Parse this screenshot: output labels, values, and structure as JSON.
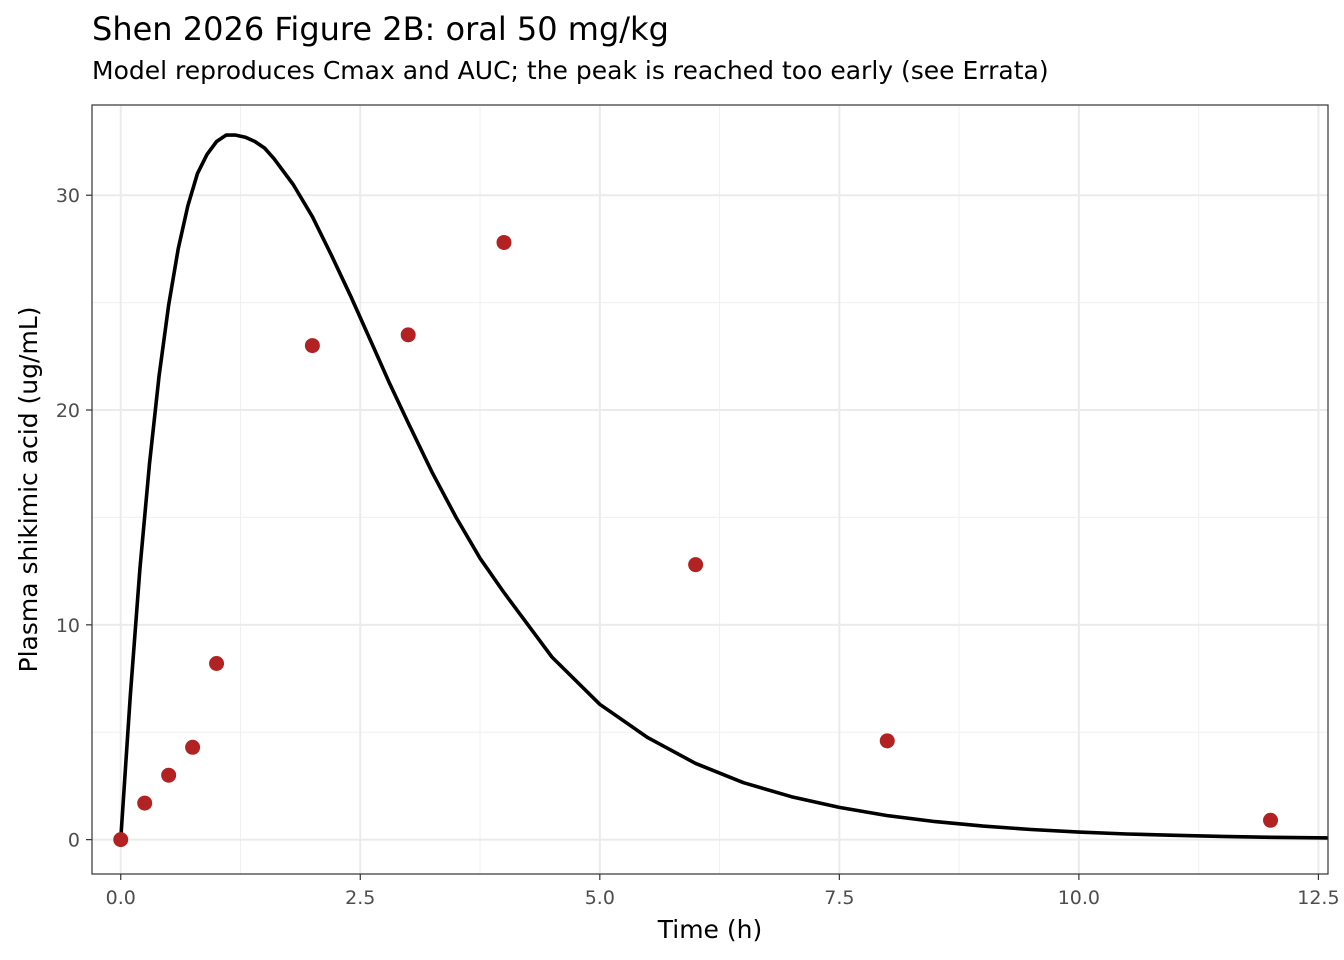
{
  "chart_data": {
    "type": "line",
    "title": "Shen 2026 Figure 2B: oral 50 mg/kg",
    "subtitle": "Model reproduces Cmax and AUC; the peak is reached too early (see Errata)",
    "xlabel": "Time (h)",
    "ylabel": "Plasma shikimic acid (ug/mL)",
    "xlim": [
      -0.3,
      12.6
    ],
    "ylim": [
      -1.6,
      34.2
    ],
    "x_ticks": [
      0,
      2.5,
      5,
      7.5,
      10,
      12.5
    ],
    "x_tick_labels": [
      "0.0",
      "2.5",
      "5.0",
      "7.5",
      "10.0",
      "12.5"
    ],
    "y_ticks": [
      0,
      10,
      20,
      30
    ],
    "y_tick_labels": [
      "0",
      "10",
      "20",
      "30"
    ],
    "grid": true,
    "legend": "none",
    "series": [
      {
        "kind": "line",
        "color": "#000000",
        "x": [
          0,
          0.1,
          0.2,
          0.3,
          0.4,
          0.5,
          0.6,
          0.7,
          0.8,
          0.9,
          1.0,
          1.1,
          1.2,
          1.3,
          1.4,
          1.5,
          1.6,
          1.8,
          2.0,
          2.2,
          2.4,
          2.6,
          2.8,
          3.0,
          3.25,
          3.5,
          3.75,
          4.0,
          4.5,
          5.0,
          5.5,
          6.0,
          6.5,
          7.0,
          7.5,
          8.0,
          8.5,
          9.0,
          9.5,
          10.0,
          10.5,
          11.0,
          11.5,
          12.0,
          12.6
        ],
        "y": [
          0,
          6.7,
          12.6,
          17.5,
          21.6,
          24.9,
          27.5,
          29.5,
          31.0,
          31.9,
          32.5,
          32.8,
          32.8,
          32.7,
          32.5,
          32.2,
          31.7,
          30.5,
          29.0,
          27.2,
          25.3,
          23.3,
          21.3,
          19.4,
          17.1,
          15.0,
          13.1,
          11.5,
          8.5,
          6.3,
          4.75,
          3.55,
          2.65,
          2.0,
          1.5,
          1.12,
          0.84,
          0.63,
          0.47,
          0.35,
          0.26,
          0.2,
          0.15,
          0.11,
          0.08
        ]
      },
      {
        "kind": "scatter",
        "color": "#b22222",
        "x": [
          0,
          0.25,
          0.5,
          0.75,
          1,
          2,
          3,
          4,
          6,
          8,
          12
        ],
        "y": [
          0,
          1.7,
          3.0,
          4.3,
          8.2,
          23.0,
          23.5,
          27.8,
          12.8,
          4.6,
          0.9
        ]
      }
    ]
  }
}
